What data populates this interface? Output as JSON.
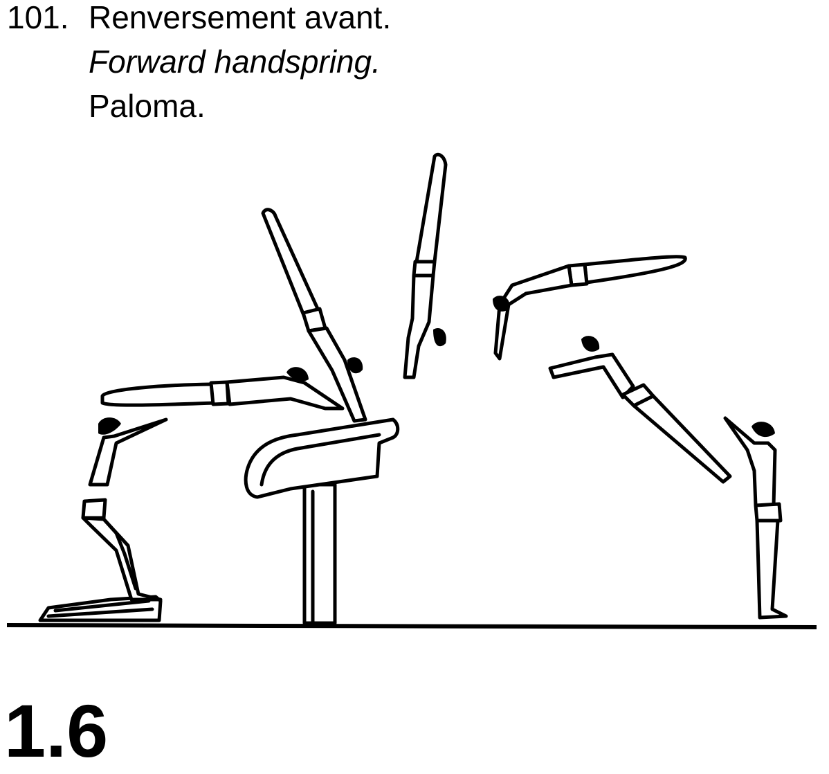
{
  "skill": {
    "number": "101.",
    "name_fr": "Renversement avant.",
    "name_en": "Forward handspring.",
    "name_es": "Paloma."
  },
  "section_code": "1.6",
  "figure": {
    "description_icons": [
      "springboard",
      "vaulting-horse",
      "gymnast-figures",
      "floor-line"
    ],
    "colors": {
      "line": "#000000",
      "background": "#ffffff"
    }
  }
}
